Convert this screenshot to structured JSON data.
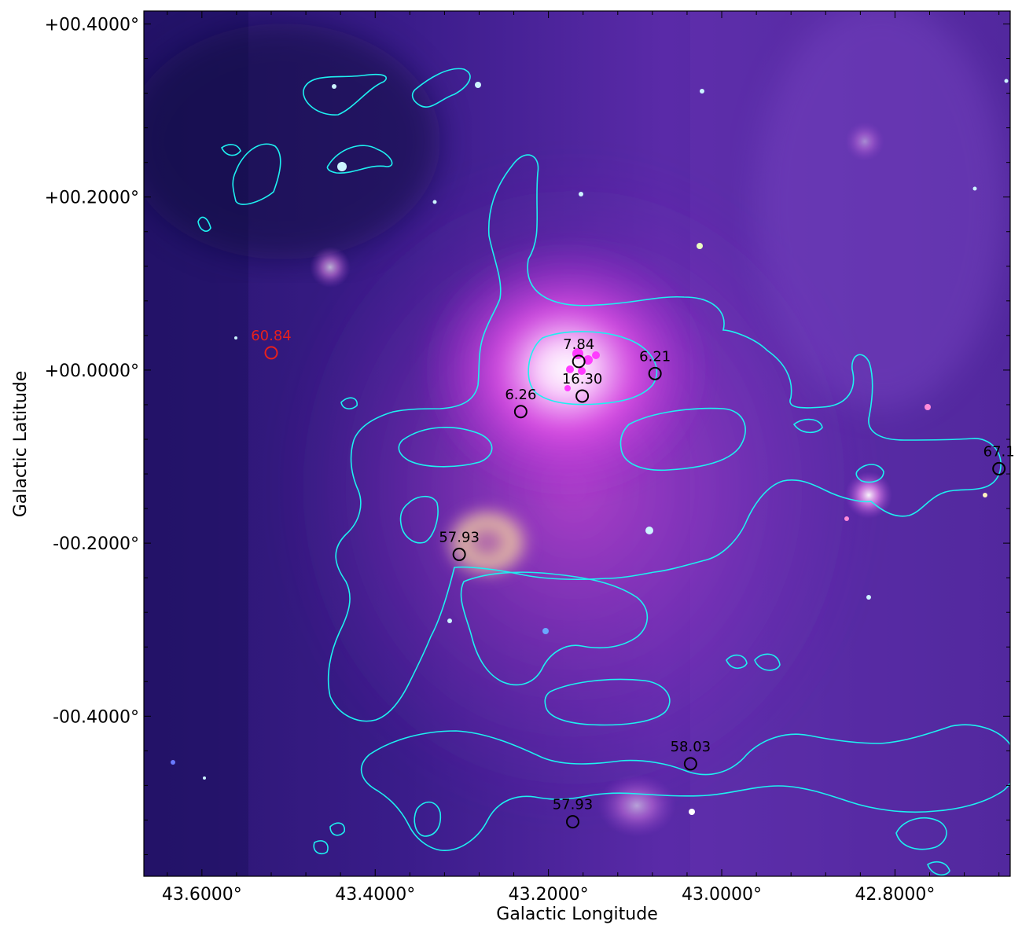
{
  "axes": {
    "xlabel": "Galactic Longitude",
    "ylabel": "Galactic Latitude",
    "x_ticks": [
      {
        "value": 43.6,
        "label": "43.6000°"
      },
      {
        "value": 43.4,
        "label": "43.4000°"
      },
      {
        "value": 43.2,
        "label": "43.2000°"
      },
      {
        "value": 43.0,
        "label": "43.0000°"
      },
      {
        "value": 42.8,
        "label": "42.8000°"
      }
    ],
    "y_ticks": [
      {
        "value": 0.4,
        "label": "+00.4000°"
      },
      {
        "value": 0.2,
        "label": "+00.2000°"
      },
      {
        "value": 0.0,
        "label": "+00.0000°"
      },
      {
        "value": -0.2,
        "label": "-00.2000°"
      },
      {
        "value": -0.4,
        "label": "-00.4000°"
      }
    ],
    "xlim": [
      43.667,
      42.667
    ],
    "ylim": [
      -0.585,
      0.415
    ],
    "x_direction": "decreasing to the right"
  },
  "markers": [
    {
      "label": "60.84",
      "l": 43.52,
      "b": 0.02,
      "color": "#e8201c"
    },
    {
      "label": "7.84",
      "l": 43.165,
      "b": 0.01,
      "color": "#000000"
    },
    {
      "label": "16.30",
      "l": 43.161,
      "b": -0.03,
      "color": "#000000"
    },
    {
      "label": "6.21",
      "l": 43.077,
      "b": -0.004,
      "color": "#000000"
    },
    {
      "label": "6.26",
      "l": 43.232,
      "b": -0.048,
      "color": "#000000"
    },
    {
      "label": "67.1",
      "l": 42.68,
      "b": -0.114,
      "color": "#000000"
    },
    {
      "label": "57.93",
      "l": 43.303,
      "b": -0.213,
      "color": "#000000"
    },
    {
      "label": "58.03",
      "l": 43.036,
      "b": -0.455,
      "color": "#000000"
    },
    {
      "label": "57.93",
      "l": 43.172,
      "b": -0.522,
      "color": "#000000"
    }
  ],
  "colors": {
    "contour": "#1ef0f0",
    "marker_default": "#000000",
    "marker_highlight": "#e8201c",
    "core_emission": "#ff3cff",
    "background": "#2a1466"
  },
  "image": {
    "description_type": "three-color infrared composite with cyan intensity contours"
  }
}
